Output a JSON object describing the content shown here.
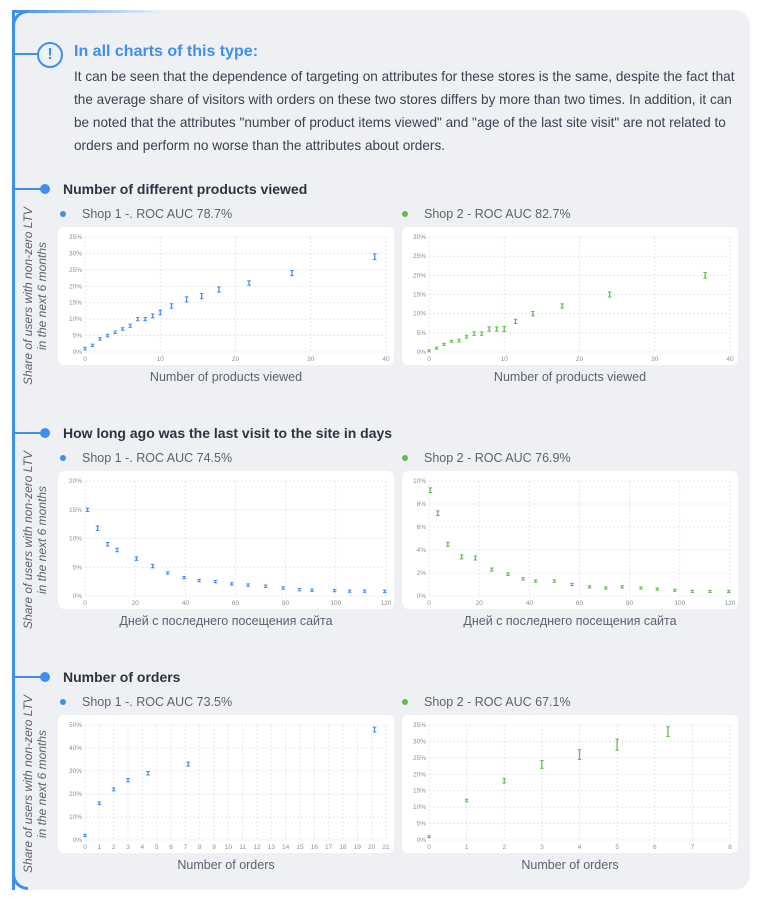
{
  "note": {
    "title": "In all charts of this type:",
    "body": "It can be seen that the dependence of targeting on attributes for these stores is the same, despite the fact that the average share of visitors with orders on these two stores differs by more than two times. In addition, it can be noted that the attributes \"number of product items viewed\" and \"age of the last site visit\" are not related to orders and perform no worse than the attributes about orders."
  },
  "ylabel_line1": "Share of users with non-zero LTV",
  "ylabel_line2": "in the next 6 months",
  "colors": {
    "accent": "#3d8ff0",
    "shop1": "#3d8ff0",
    "shop2": "#5cbf4a"
  },
  "sections": [
    {
      "title": "Number of different products viewed",
      "shop1_legend": "Shop 1 -.  ROC AUC 78.7%",
      "shop2_legend": "Shop 2 -  ROC AUC 82.7%",
      "xlabel": "Number of products viewed"
    },
    {
      "title": "How long ago was the last visit to the site in days",
      "shop1_legend": "Shop 1 -.  ROC AUC 74.5%",
      "shop2_legend": "Shop 2 -  ROC AUC 76.9%",
      "xlabel": "Дней с последнего посещения сайта"
    },
    {
      "title": "Number of orders",
      "shop1_legend": "Shop 1 -.  ROC AUC 73.5%",
      "shop2_legend": "Shop 2 -  ROC AUC 67.1%",
      "xlabel": "Number of orders"
    }
  ],
  "chart_data": [
    {
      "type": "scatter",
      "name": "Shop 1",
      "section": 0,
      "xlabel": "Number of products viewed",
      "xlim": [
        0,
        40
      ],
      "xstep": 10,
      "ylim": [
        0,
        35
      ],
      "ystep": 5,
      "grid": true,
      "y_unit": "%",
      "points": [
        [
          0,
          1,
          0.2
        ],
        [
          1,
          2,
          0.2
        ],
        [
          2,
          4,
          0.2
        ],
        [
          3,
          5,
          0.2
        ],
        [
          4,
          6,
          0.2
        ],
        [
          5,
          7,
          0.2
        ],
        [
          6,
          8,
          0.3
        ],
        [
          7,
          10,
          0.3
        ],
        [
          8,
          10,
          0.3
        ],
        [
          9,
          11,
          0.4
        ],
        [
          10,
          12,
          0.5
        ],
        [
          11.5,
          14,
          0.5
        ],
        [
          13.5,
          16,
          0.6
        ],
        [
          15.5,
          17,
          0.6
        ],
        [
          17.8,
          19,
          0.6
        ],
        [
          21.8,
          21,
          0.5
        ],
        [
          27.5,
          24,
          0.6
        ],
        [
          38.5,
          29,
          0.7
        ]
      ]
    },
    {
      "type": "scatter",
      "name": "Shop 2",
      "section": 0,
      "xlabel": "Number of products viewed",
      "xlim": [
        0,
        40
      ],
      "xstep": 10,
      "ylim": [
        0,
        30
      ],
      "ystep": 5,
      "grid": true,
      "y_unit": "%",
      "points": [
        [
          0,
          0.3,
          0.1
        ],
        [
          1,
          1,
          0.1
        ],
        [
          2,
          2,
          0.1
        ],
        [
          3,
          2.8,
          0.1
        ],
        [
          4,
          3,
          0.2
        ],
        [
          5,
          4,
          0.2
        ],
        [
          6,
          4.8,
          0.3
        ],
        [
          7,
          4.8,
          0.3
        ],
        [
          8,
          6,
          0.4
        ],
        [
          9,
          6,
          0.4
        ],
        [
          10,
          6,
          0.5
        ],
        [
          11.5,
          8,
          0.4
        ],
        [
          13.8,
          10,
          0.4
        ],
        [
          17.7,
          12,
          0.4
        ],
        [
          24,
          15,
          0.5
        ],
        [
          36.7,
          20,
          0.6
        ]
      ]
    },
    {
      "type": "scatter",
      "name": "Shop 1",
      "section": 1,
      "xlabel": "Дней с последнего посещения сайта",
      "xlim": [
        0,
        120
      ],
      "xstep": 20,
      "ylim": [
        0,
        20
      ],
      "ystep": 5,
      "grid": true,
      "y_unit": "%",
      "points": [
        [
          1,
          15,
          0.2
        ],
        [
          5,
          11.8,
          0.3
        ],
        [
          9,
          9,
          0.2
        ],
        [
          12.8,
          8,
          0.2
        ],
        [
          20.5,
          6.5,
          0.2
        ],
        [
          27,
          5.2,
          0.2
        ],
        [
          33,
          4,
          0.1
        ],
        [
          39.5,
          3.2,
          0.1
        ],
        [
          45.5,
          2.7,
          0.1
        ],
        [
          52,
          2.5,
          0.1
        ],
        [
          58.5,
          2.1,
          0.1
        ],
        [
          65,
          1.9,
          0.1
        ],
        [
          72,
          1.7,
          0.1
        ],
        [
          79,
          1.4,
          0.1
        ],
        [
          85.5,
          1.1,
          0.1
        ],
        [
          90.5,
          1,
          0.1
        ],
        [
          99.5,
          0.95,
          0.1
        ],
        [
          105.5,
          0.85,
          0.1
        ],
        [
          111.5,
          0.85,
          0.1
        ],
        [
          119.5,
          0.8,
          0.1
        ]
      ]
    },
    {
      "type": "scatter",
      "name": "Shop 2",
      "section": 1,
      "xlabel": "Дней с последнего посещения сайта",
      "xlim": [
        0,
        120
      ],
      "xstep": 20,
      "ylim": [
        0,
        10
      ],
      "ystep": 2,
      "grid": true,
      "y_unit": "%",
      "points": [
        [
          0.5,
          9.2,
          0.15
        ],
        [
          3.5,
          7.2,
          0.15
        ],
        [
          7.5,
          4.5,
          0.12
        ],
        [
          13,
          3.4,
          0.12
        ],
        [
          18.5,
          3.3,
          0.12
        ],
        [
          25,
          2.3,
          0.08
        ],
        [
          31.5,
          1.9,
          0.06
        ],
        [
          37.5,
          1.5,
          0.05
        ],
        [
          42.5,
          1.3,
          0.05
        ],
        [
          50,
          1.3,
          0.05
        ],
        [
          57,
          1,
          0.04
        ],
        [
          64,
          0.8,
          0.04
        ],
        [
          70.5,
          0.7,
          0.04
        ],
        [
          77,
          0.8,
          0.04
        ],
        [
          84.5,
          0.7,
          0.04
        ],
        [
          91,
          0.6,
          0.04
        ],
        [
          98,
          0.5,
          0.04
        ],
        [
          105,
          0.4,
          0.04
        ],
        [
          112,
          0.4,
          0.04
        ],
        [
          119.5,
          0.4,
          0.04
        ]
      ]
    },
    {
      "type": "scatter",
      "name": "Shop 1",
      "section": 2,
      "xlabel": "Number of orders",
      "xlim": [
        0,
        21
      ],
      "xstep": 1,
      "ylim": [
        0,
        50
      ],
      "ystep": 10,
      "grid": true,
      "y_unit": "%",
      "points": [
        [
          0,
          2,
          0.2
        ],
        [
          1,
          16,
          0.3
        ],
        [
          2,
          22,
          0.4
        ],
        [
          3,
          26,
          0.5
        ],
        [
          4.4,
          29,
          0.5
        ],
        [
          7.2,
          33,
          0.6
        ],
        [
          20.2,
          48,
          0.8
        ]
      ]
    },
    {
      "type": "scatter",
      "name": "Shop 2",
      "section": 2,
      "xlabel": "Number of orders",
      "xlim": [
        0,
        8
      ],
      "xstep": 1,
      "ylim": [
        0,
        35
      ],
      "ystep": 5,
      "grid": true,
      "y_unit": "%",
      "points": [
        [
          0,
          1,
          0.1
        ],
        [
          1,
          12,
          0.2
        ],
        [
          2,
          18,
          0.5
        ],
        [
          3,
          23,
          1
        ],
        [
          4,
          26,
          1.3
        ],
        [
          5,
          29,
          1.5
        ],
        [
          6.35,
          33,
          1.3
        ]
      ]
    }
  ]
}
